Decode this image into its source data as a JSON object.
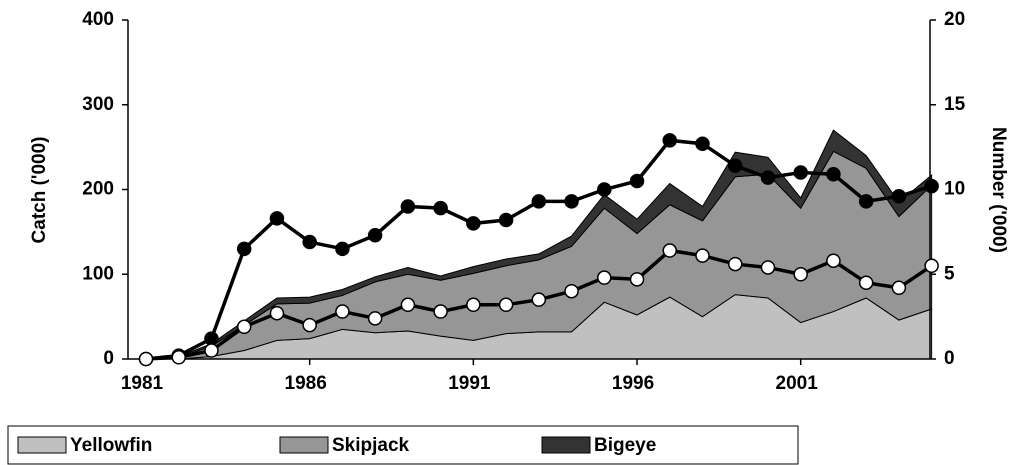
{
  "chart_data": {
    "type": "stacked-area-line",
    "x": [
      1981,
      1982,
      1983,
      1984,
      1985,
      1986,
      1987,
      1988,
      1989,
      1990,
      1991,
      1992,
      1993,
      1994,
      1995,
      1996,
      1997,
      1998,
      1999,
      2000,
      2001,
      2002,
      2003,
      2004,
      2005
    ],
    "series": [
      {
        "name": "Yellowfin",
        "color": "#c0c0c0",
        "values": [
          0,
          0,
          3,
          10,
          22,
          24,
          35,
          31,
          33,
          27,
          22,
          30,
          32,
          32,
          67,
          52,
          73,
          50,
          76,
          72,
          43,
          56,
          72,
          46,
          59
        ]
      },
      {
        "name": "Skipjack",
        "color": "#969696",
        "values": [
          0,
          2,
          12,
          30,
          43,
          42,
          40,
          60,
          67,
          66,
          79,
          80,
          85,
          101,
          111,
          96,
          109,
          113,
          139,
          146,
          135,
          189,
          153,
          122,
          146
        ]
      },
      {
        "name": "Bigeye",
        "color": "#333333",
        "values": [
          0,
          1,
          3,
          5,
          7,
          7,
          7,
          6,
          8,
          5,
          8,
          8,
          7,
          12,
          16,
          17,
          25,
          17,
          29,
          20,
          12,
          25,
          15,
          17,
          12
        ]
      },
      {
        "axis": "y2",
        "color": "#000000",
        "marker_fill": "#000000",
        "values": [
          0,
          0.2,
          1.2,
          6.5,
          8.3,
          6.9,
          6.5,
          7.3,
          9.0,
          8.9,
          8.0,
          8.2,
          9.3,
          9.3,
          10.0,
          10.5,
          12.9,
          12.7,
          11.4,
          10.7,
          11.0,
          10.9,
          9.3,
          9.6,
          10.2
        ]
      },
      {
        "axis": "y2",
        "color": "#000000",
        "marker_fill": "#ffffff",
        "values": [
          0,
          0.1,
          0.5,
          1.9,
          2.7,
          2.0,
          2.8,
          2.4,
          3.2,
          2.8,
          3.2,
          3.2,
          3.5,
          4.0,
          4.8,
          4.7,
          6.4,
          6.1,
          5.6,
          5.4,
          5.0,
          5.8,
          4.5,
          4.2,
          5.5
        ]
      }
    ],
    "y_label": "Catch ('000)",
    "y2_label": "Number ('000)",
    "xlim": [
      1981,
      2005.5
    ],
    "xticks": [
      1981,
      1986,
      1991,
      1996,
      2001
    ],
    "ylim": [
      0,
      400
    ],
    "yticks": [
      0,
      100,
      200,
      300,
      400
    ],
    "y2lim": [
      0,
      20
    ],
    "y2ticks": [
      0,
      5,
      10,
      15,
      20
    ],
    "legend": "bottom"
  }
}
